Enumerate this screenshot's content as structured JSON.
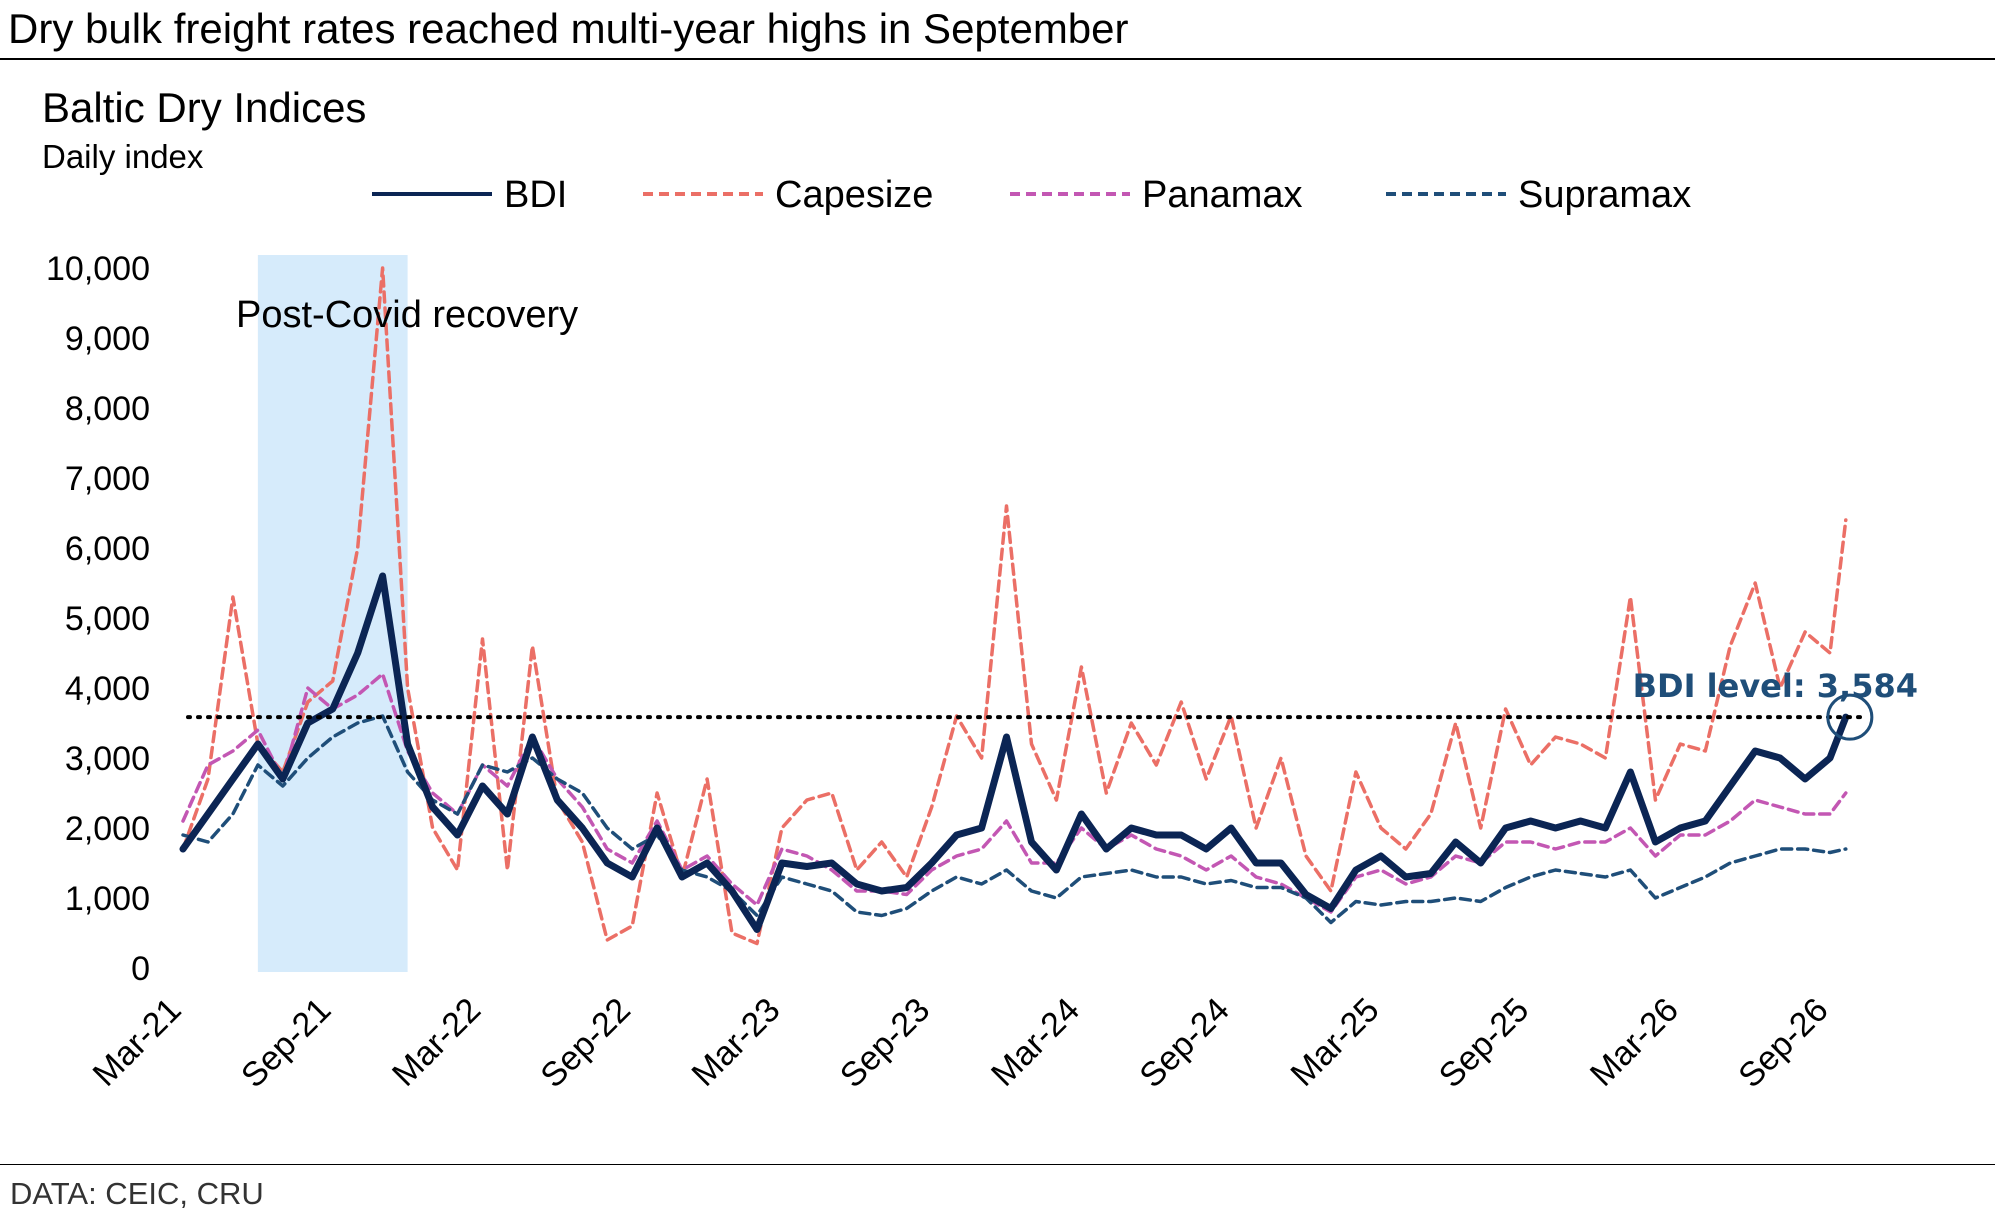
{
  "headline": "Dry bulk freight rates reached multi-year highs in September",
  "source": "DATA: CEIC, CRU",
  "colors": {
    "bdi": "#0b2554",
    "capesize": "#eb6f66",
    "panamax": "#c357b3",
    "supramax": "#1f4e79",
    "shading": "#d6ebfb",
    "reference": "#000000",
    "callout": "#1f4e79"
  },
  "chart_data": {
    "type": "line",
    "title": "Baltic Dry Indices",
    "subtitle": "Daily index",
    "xlabel": "",
    "ylabel": "",
    "ylim": [
      0,
      10000
    ],
    "yticks": [
      0,
      1000,
      2000,
      3000,
      4000,
      5000,
      6000,
      7000,
      8000,
      9000,
      10000
    ],
    "ytick_labels": [
      "0",
      "1,000",
      "2,000",
      "3,000",
      "4,000",
      "5,000",
      "6,000",
      "7,000",
      "8,000",
      "9,000",
      "10,000"
    ],
    "xlim": [
      "2021-03",
      "2026-10"
    ],
    "xticks": [
      "2021-03",
      "2021-09",
      "2022-03",
      "2022-09",
      "2023-03",
      "2023-09",
      "2024-03",
      "2024-09",
      "2025-03",
      "2025-09",
      "2026-03",
      "2026-09"
    ],
    "xtick_labels": [
      "Mar-21",
      "Sep-21",
      "Mar-22",
      "Sep-22",
      "Mar-23",
      "Sep-23",
      "Mar-24",
      "Sep-24",
      "Mar-25",
      "Sep-25",
      "Mar-26",
      "Sep-26"
    ],
    "legend_position": "top",
    "grid": false,
    "series": [
      {
        "name": "BDI",
        "style": "solid",
        "points": [
          [
            "2021-03",
            1700
          ],
          [
            "2021-04",
            2200
          ],
          [
            "2021-05",
            2700
          ],
          [
            "2021-06",
            3200
          ],
          [
            "2021-07",
            2700
          ],
          [
            "2021-08",
            3500
          ],
          [
            "2021-09",
            3700
          ],
          [
            "2021-10",
            4500
          ],
          [
            "2021-11",
            5600
          ],
          [
            "2021-12",
            3200
          ],
          [
            "2022-01",
            2300
          ],
          [
            "2022-02",
            1900
          ],
          [
            "2022-03",
            2600
          ],
          [
            "2022-04",
            2200
          ],
          [
            "2022-05",
            3300
          ],
          [
            "2022-06",
            2400
          ],
          [
            "2022-07",
            2000
          ],
          [
            "2022-08",
            1500
          ],
          [
            "2022-09",
            1300
          ],
          [
            "2022-10",
            2000
          ],
          [
            "2022-11",
            1300
          ],
          [
            "2022-12",
            1500
          ],
          [
            "2023-01",
            1100
          ],
          [
            "2023-02",
            550
          ],
          [
            "2023-03",
            1500
          ],
          [
            "2023-04",
            1450
          ],
          [
            "2023-05",
            1500
          ],
          [
            "2023-06",
            1200
          ],
          [
            "2023-07",
            1100
          ],
          [
            "2023-08",
            1150
          ],
          [
            "2023-09",
            1500
          ],
          [
            "2023-10",
            1900
          ],
          [
            "2023-11",
            2000
          ],
          [
            "2023-12",
            3300
          ],
          [
            "2024-01",
            1800
          ],
          [
            "2024-02",
            1400
          ],
          [
            "2024-03",
            2200
          ],
          [
            "2024-04",
            1700
          ],
          [
            "2024-05",
            2000
          ],
          [
            "2024-06",
            1900
          ],
          [
            "2024-07",
            1900
          ],
          [
            "2024-08",
            1700
          ],
          [
            "2024-09",
            2000
          ],
          [
            "2024-10",
            1500
          ],
          [
            "2024-11",
            1500
          ],
          [
            "2024-12",
            1050
          ],
          [
            "2025-01",
            850
          ],
          [
            "2025-02",
            1400
          ],
          [
            "2025-03",
            1600
          ],
          [
            "2025-04",
            1300
          ],
          [
            "2025-05",
            1350
          ],
          [
            "2025-06",
            1800
          ],
          [
            "2025-07",
            1500
          ],
          [
            "2025-08",
            2000
          ],
          [
            "2025-09",
            2100
          ],
          [
            "2025-10",
            2000
          ],
          [
            "2025-11",
            2100
          ],
          [
            "2025-12",
            2000
          ],
          [
            "2026-01",
            2800
          ],
          [
            "2026-02",
            1800
          ],
          [
            "2026-03",
            2000
          ],
          [
            "2026-04",
            2100
          ],
          [
            "2026-05",
            2600
          ],
          [
            "2026-06",
            3100
          ],
          [
            "2026-07",
            3000
          ],
          [
            "2026-08",
            2700
          ],
          [
            "2026-09",
            3000
          ],
          [
            "2026-09-20",
            3584
          ]
        ]
      },
      {
        "name": "Capesize",
        "style": "dashed",
        "points": [
          [
            "2021-03",
            1700
          ],
          [
            "2021-04",
            2700
          ],
          [
            "2021-05",
            5300
          ],
          [
            "2021-06",
            3200
          ],
          [
            "2021-07",
            2800
          ],
          [
            "2021-08",
            3800
          ],
          [
            "2021-09",
            4100
          ],
          [
            "2021-10",
            6000
          ],
          [
            "2021-11",
            10000
          ],
          [
            "2021-12",
            4000
          ],
          [
            "2022-01",
            2000
          ],
          [
            "2022-02",
            1400
          ],
          [
            "2022-03",
            4700
          ],
          [
            "2022-04",
            1400
          ],
          [
            "2022-05",
            4600
          ],
          [
            "2022-06",
            2400
          ],
          [
            "2022-07",
            1800
          ],
          [
            "2022-08",
            400
          ],
          [
            "2022-09",
            600
          ],
          [
            "2022-10",
            2500
          ],
          [
            "2022-11",
            1300
          ],
          [
            "2022-12",
            2700
          ],
          [
            "2023-01",
            500
          ],
          [
            "2023-02",
            350
          ],
          [
            "2023-03",
            2000
          ],
          [
            "2023-04",
            2400
          ],
          [
            "2023-05",
            2500
          ],
          [
            "2023-06",
            1400
          ],
          [
            "2023-07",
            1800
          ],
          [
            "2023-08",
            1300
          ],
          [
            "2023-09",
            2300
          ],
          [
            "2023-10",
            3600
          ],
          [
            "2023-11",
            3000
          ],
          [
            "2023-12",
            6600
          ],
          [
            "2024-01",
            3200
          ],
          [
            "2024-02",
            2400
          ],
          [
            "2024-03",
            4300
          ],
          [
            "2024-04",
            2500
          ],
          [
            "2024-05",
            3500
          ],
          [
            "2024-06",
            2900
          ],
          [
            "2024-07",
            3800
          ],
          [
            "2024-08",
            2700
          ],
          [
            "2024-09",
            3600
          ],
          [
            "2024-10",
            2000
          ],
          [
            "2024-11",
            3000
          ],
          [
            "2024-12",
            1600
          ],
          [
            "2025-01",
            1100
          ],
          [
            "2025-02",
            2800
          ],
          [
            "2025-03",
            2000
          ],
          [
            "2025-04",
            1700
          ],
          [
            "2025-05",
            2200
          ],
          [
            "2025-06",
            3500
          ],
          [
            "2025-07",
            2000
          ],
          [
            "2025-08",
            3700
          ],
          [
            "2025-09",
            2900
          ],
          [
            "2025-10",
            3300
          ],
          [
            "2025-11",
            3200
          ],
          [
            "2025-12",
            3000
          ],
          [
            "2026-01",
            5300
          ],
          [
            "2026-02",
            2400
          ],
          [
            "2026-03",
            3200
          ],
          [
            "2026-04",
            3100
          ],
          [
            "2026-05",
            4600
          ],
          [
            "2026-06",
            5500
          ],
          [
            "2026-07",
            4000
          ],
          [
            "2026-08",
            4800
          ],
          [
            "2026-09",
            4500
          ],
          [
            "2026-09-20",
            6400
          ]
        ]
      },
      {
        "name": "Panamax",
        "style": "dashed",
        "points": [
          [
            "2021-03",
            2100
          ],
          [
            "2021-04",
            2900
          ],
          [
            "2021-05",
            3100
          ],
          [
            "2021-06",
            3400
          ],
          [
            "2021-07",
            2700
          ],
          [
            "2021-08",
            4000
          ],
          [
            "2021-09",
            3700
          ],
          [
            "2021-10",
            3900
          ],
          [
            "2021-11",
            4200
          ],
          [
            "2021-12",
            3100
          ],
          [
            "2022-01",
            2500
          ],
          [
            "2022-02",
            2200
          ],
          [
            "2022-03",
            2900
          ],
          [
            "2022-04",
            2600
          ],
          [
            "2022-05",
            3300
          ],
          [
            "2022-06",
            2700
          ],
          [
            "2022-07",
            2300
          ],
          [
            "2022-08",
            1700
          ],
          [
            "2022-09",
            1500
          ],
          [
            "2022-10",
            2100
          ],
          [
            "2022-11",
            1400
          ],
          [
            "2022-12",
            1600
          ],
          [
            "2023-01",
            1200
          ],
          [
            "2023-02",
            900
          ],
          [
            "2023-03",
            1700
          ],
          [
            "2023-04",
            1600
          ],
          [
            "2023-05",
            1400
          ],
          [
            "2023-06",
            1100
          ],
          [
            "2023-07",
            1100
          ],
          [
            "2023-08",
            1050
          ],
          [
            "2023-09",
            1400
          ],
          [
            "2023-10",
            1600
          ],
          [
            "2023-11",
            1700
          ],
          [
            "2023-12",
            2100
          ],
          [
            "2024-01",
            1500
          ],
          [
            "2024-02",
            1500
          ],
          [
            "2024-03",
            2000
          ],
          [
            "2024-04",
            1700
          ],
          [
            "2024-05",
            1900
          ],
          [
            "2024-06",
            1700
          ],
          [
            "2024-07",
            1600
          ],
          [
            "2024-08",
            1400
          ],
          [
            "2024-09",
            1600
          ],
          [
            "2024-10",
            1300
          ],
          [
            "2024-11",
            1200
          ],
          [
            "2024-12",
            1000
          ],
          [
            "2025-01",
            800
          ],
          [
            "2025-02",
            1300
          ],
          [
            "2025-03",
            1400
          ],
          [
            "2025-04",
            1200
          ],
          [
            "2025-05",
            1300
          ],
          [
            "2025-06",
            1600
          ],
          [
            "2025-07",
            1500
          ],
          [
            "2025-08",
            1800
          ],
          [
            "2025-09",
            1800
          ],
          [
            "2025-10",
            1700
          ],
          [
            "2025-11",
            1800
          ],
          [
            "2025-12",
            1800
          ],
          [
            "2026-01",
            2000
          ],
          [
            "2026-02",
            1600
          ],
          [
            "2026-03",
            1900
          ],
          [
            "2026-04",
            1900
          ],
          [
            "2026-05",
            2100
          ],
          [
            "2026-06",
            2400
          ],
          [
            "2026-07",
            2300
          ],
          [
            "2026-08",
            2200
          ],
          [
            "2026-09",
            2200
          ],
          [
            "2026-09-20",
            2500
          ]
        ]
      },
      {
        "name": "Supramax",
        "style": "dashed",
        "points": [
          [
            "2021-03",
            1900
          ],
          [
            "2021-04",
            1800
          ],
          [
            "2021-05",
            2200
          ],
          [
            "2021-06",
            2900
          ],
          [
            "2021-07",
            2600
          ],
          [
            "2021-08",
            3000
          ],
          [
            "2021-09",
            3300
          ],
          [
            "2021-10",
            3500
          ],
          [
            "2021-11",
            3600
          ],
          [
            "2021-12",
            2800
          ],
          [
            "2022-01",
            2400
          ],
          [
            "2022-02",
            2200
          ],
          [
            "2022-03",
            2900
          ],
          [
            "2022-04",
            2800
          ],
          [
            "2022-05",
            3000
          ],
          [
            "2022-06",
            2700
          ],
          [
            "2022-07",
            2500
          ],
          [
            "2022-08",
            2000
          ],
          [
            "2022-09",
            1700
          ],
          [
            "2022-10",
            1900
          ],
          [
            "2022-11",
            1400
          ],
          [
            "2022-12",
            1300
          ],
          [
            "2023-01",
            1100
          ],
          [
            "2023-02",
            750
          ],
          [
            "2023-03",
            1300
          ],
          [
            "2023-04",
            1200
          ],
          [
            "2023-05",
            1100
          ],
          [
            "2023-06",
            800
          ],
          [
            "2023-07",
            750
          ],
          [
            "2023-08",
            850
          ],
          [
            "2023-09",
            1100
          ],
          [
            "2023-10",
            1300
          ],
          [
            "2023-11",
            1200
          ],
          [
            "2023-12",
            1400
          ],
          [
            "2024-01",
            1100
          ],
          [
            "2024-02",
            1000
          ],
          [
            "2024-03",
            1300
          ],
          [
            "2024-04",
            1350
          ],
          [
            "2024-05",
            1400
          ],
          [
            "2024-06",
            1300
          ],
          [
            "2024-07",
            1300
          ],
          [
            "2024-08",
            1200
          ],
          [
            "2024-09",
            1250
          ],
          [
            "2024-10",
            1150
          ],
          [
            "2024-11",
            1150
          ],
          [
            "2024-12",
            1000
          ],
          [
            "2025-01",
            650
          ],
          [
            "2025-02",
            950
          ],
          [
            "2025-03",
            900
          ],
          [
            "2025-04",
            950
          ],
          [
            "2025-05",
            950
          ],
          [
            "2025-06",
            1000
          ],
          [
            "2025-07",
            950
          ],
          [
            "2025-08",
            1150
          ],
          [
            "2025-09",
            1300
          ],
          [
            "2025-10",
            1400
          ],
          [
            "2025-11",
            1350
          ],
          [
            "2025-12",
            1300
          ],
          [
            "2026-01",
            1400
          ],
          [
            "2026-02",
            1000
          ],
          [
            "2026-03",
            1150
          ],
          [
            "2026-04",
            1300
          ],
          [
            "2026-05",
            1500
          ],
          [
            "2026-06",
            1600
          ],
          [
            "2026-07",
            1700
          ],
          [
            "2026-08",
            1700
          ],
          [
            "2026-09",
            1650
          ],
          [
            "2026-09-20",
            1700
          ]
        ]
      }
    ],
    "shaded_region": {
      "x_start": "2021-06",
      "x_end": "2021-12",
      "label": "Post-Covid recovery"
    },
    "reference_line": {
      "y": 3584,
      "style": "dotted"
    },
    "callout": {
      "label": "BDI level: 3,584",
      "x": "2026-09-20",
      "y": 3584
    }
  }
}
